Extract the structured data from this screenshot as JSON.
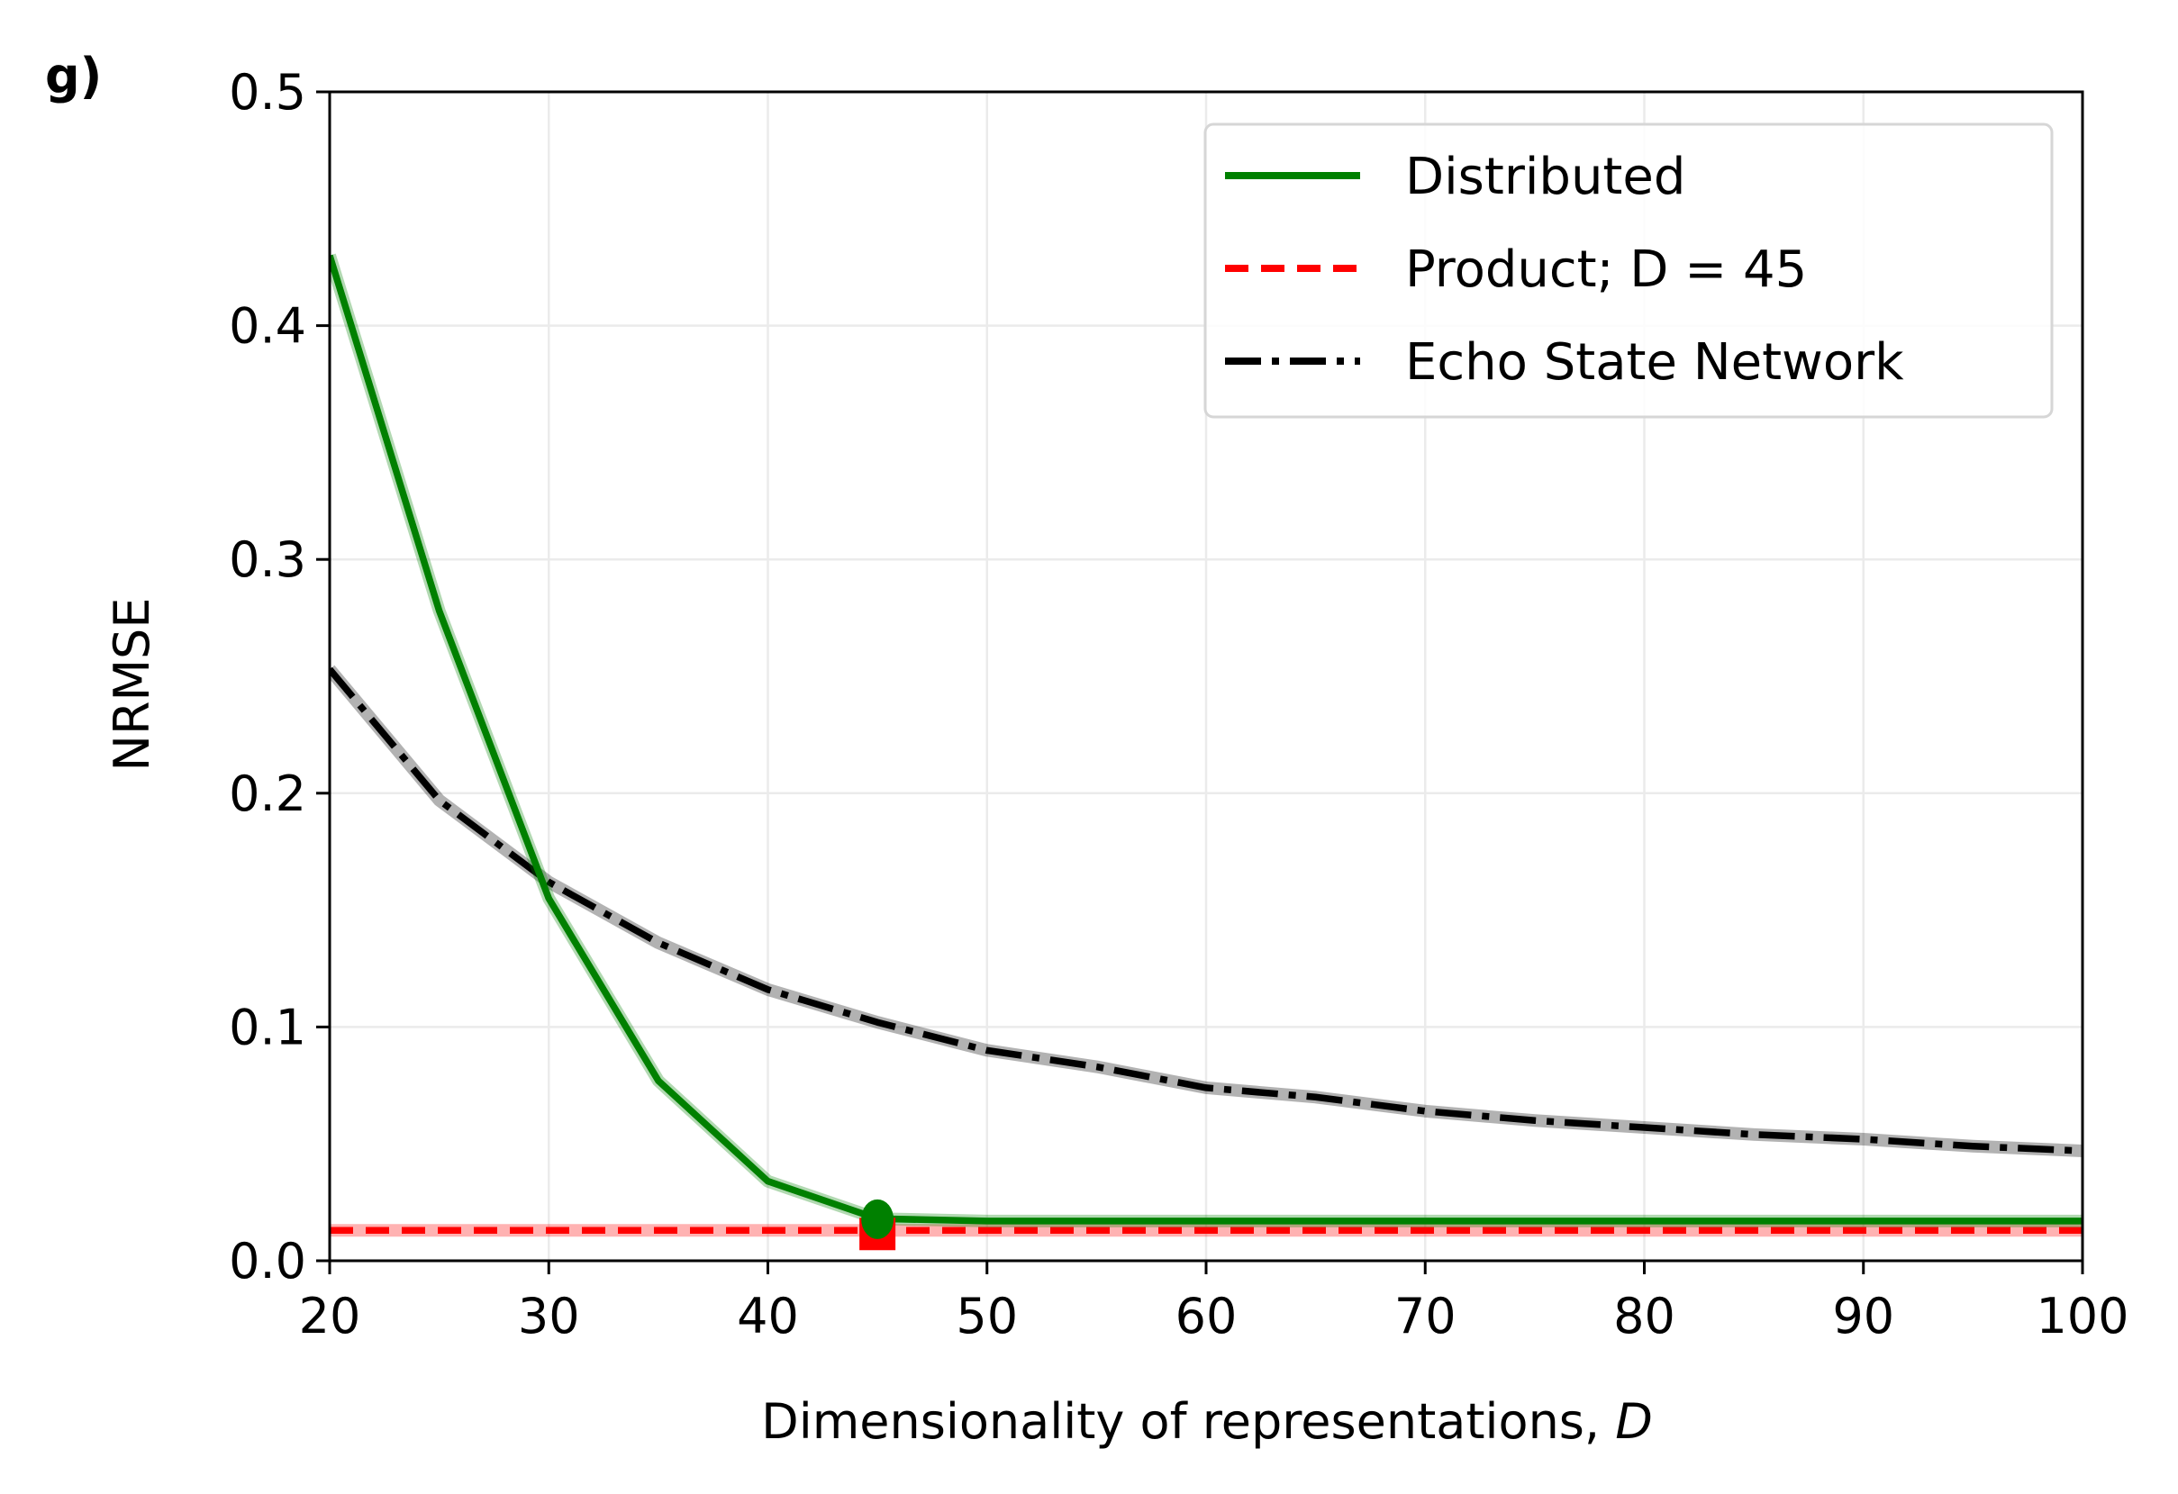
{
  "chart_data": {
    "type": "line",
    "panel_label": "g)",
    "title": "",
    "xlabel": "Dimensionality of representations, ",
    "xlabel_var": "D",
    "ylabel": "NRMSE",
    "xlim": [
      20,
      100
    ],
    "ylim": [
      0.0,
      0.5
    ],
    "xticks": [
      20,
      30,
      40,
      50,
      60,
      70,
      80,
      90,
      100
    ],
    "xtick_labels": [
      "20",
      "30",
      "40",
      "50",
      "60",
      "70",
      "80",
      "90",
      "100"
    ],
    "yticks": [
      0.0,
      0.1,
      0.2,
      0.3,
      0.4,
      0.5
    ],
    "ytick_labels": [
      "0.0",
      "0.1",
      "0.2",
      "0.3",
      "0.4",
      "0.5"
    ],
    "grid": true,
    "legend_position": "top-right",
    "series": [
      {
        "name": "Distributed",
        "style": "solid",
        "color": "#008000",
        "x": [
          20,
          25,
          30,
          35,
          40,
          45,
          50,
          55,
          60,
          65,
          70,
          75,
          80,
          85,
          90,
          95,
          100
        ],
        "values": [
          0.43,
          0.278,
          0.155,
          0.077,
          0.034,
          0.018,
          0.017,
          0.017,
          0.017,
          0.017,
          0.017,
          0.017,
          0.017,
          0.017,
          0.017,
          0.017,
          0.017
        ],
        "marker": {
          "x": 45,
          "y": 0.017,
          "shape": "circle"
        }
      },
      {
        "name": "Product; ",
        "name_math": "D = 45",
        "style": "dashed",
        "color": "#ff0000",
        "x": [
          20,
          100
        ],
        "values": [
          0.013,
          0.013
        ],
        "marker": {
          "x": 45,
          "y": 0.013,
          "shape": "square"
        }
      },
      {
        "name": "Echo State Network",
        "style": "dashdot",
        "color": "#000000",
        "x": [
          20,
          25,
          30,
          35,
          40,
          45,
          50,
          55,
          60,
          65,
          70,
          75,
          80,
          85,
          90,
          95,
          100
        ],
        "values": [
          0.253,
          0.197,
          0.162,
          0.136,
          0.116,
          0.102,
          0.09,
          0.083,
          0.074,
          0.07,
          0.064,
          0.06,
          0.057,
          0.054,
          0.052,
          0.049,
          0.047
        ]
      }
    ]
  }
}
